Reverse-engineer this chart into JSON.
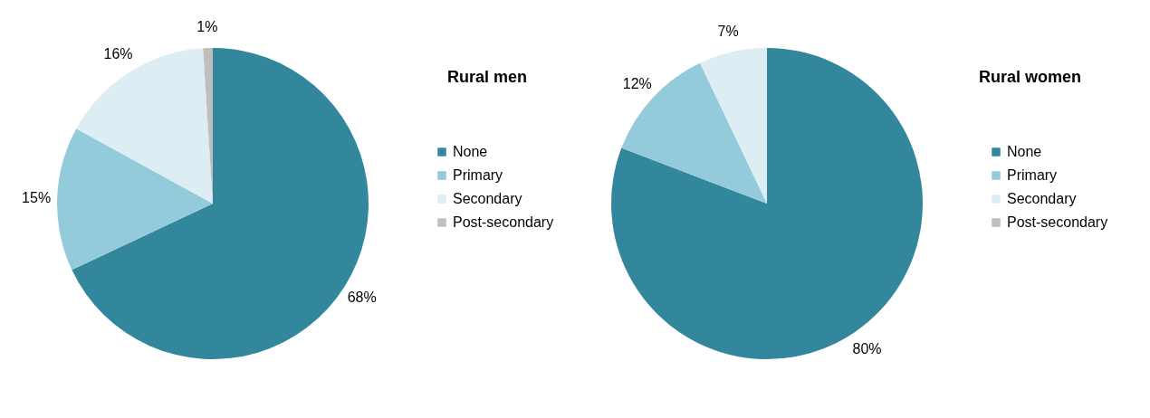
{
  "chart_data": [
    {
      "type": "pie",
      "title": "Rural men",
      "categories": [
        "None",
        "Primary",
        "Secondary",
        "Post-secondary"
      ],
      "values": [
        68,
        15,
        16,
        1
      ],
      "colors": [
        "#33879d",
        "#93cbdb",
        "#dcedf3",
        "#bfbfbf"
      ],
      "value_labels": [
        "68%",
        "15%",
        "16%",
        "1%"
      ],
      "legend": "right"
    },
    {
      "type": "pie",
      "title": "Rural women",
      "categories": [
        "None",
        "Primary",
        "Secondary",
        "Post-secondary"
      ],
      "values": [
        80,
        12,
        7,
        0
      ],
      "colors": [
        "#33879d",
        "#93cbdb",
        "#dcedf3",
        "#bfbfbf"
      ],
      "value_labels": [
        "80%",
        "12%",
        "7%",
        null
      ],
      "legend": "right"
    }
  ]
}
